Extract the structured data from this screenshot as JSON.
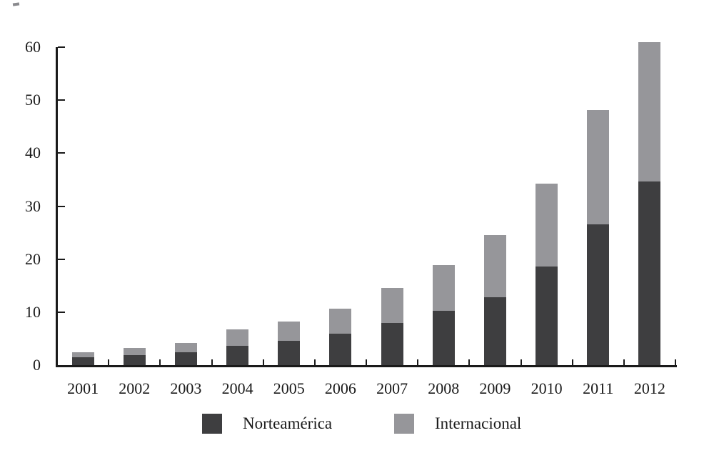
{
  "chart_data": {
    "type": "bar",
    "stacked": true,
    "title": "",
    "xlabel": "",
    "ylabel": "",
    "categories": [
      "2001",
      "2002",
      "2003",
      "2004",
      "2005",
      "2006",
      "2007",
      "2008",
      "2009",
      "2010",
      "2011",
      "2012"
    ],
    "series": [
      {
        "name": "Norteamérica",
        "color": "#3E3E40",
        "values": [
          1.5,
          1.9,
          2.4,
          3.7,
          4.6,
          5.9,
          7.9,
          10.2,
          12.8,
          18.6,
          26.5,
          34.7
        ]
      },
      {
        "name": "Internacional",
        "color": "#96969A",
        "values": [
          0.9,
          1.4,
          1.8,
          3.0,
          3.6,
          4.8,
          6.7,
          8.7,
          11.8,
          15.6,
          21.6,
          26.2
        ]
      }
    ],
    "totals": [
      2.4,
      3.3,
      4.2,
      6.7,
      8.2,
      10.7,
      14.6,
      18.9,
      24.6,
      34.2,
      48.1,
      60.9
    ],
    "ylim": [
      0,
      60
    ],
    "yticks": [
      0,
      10,
      20,
      30,
      40,
      50,
      60
    ],
    "grid": false,
    "legend_position": "bottom",
    "axis_color": "#1a1a1a",
    "text_color": "#1a1a1a",
    "background_color": "#ffffff"
  }
}
